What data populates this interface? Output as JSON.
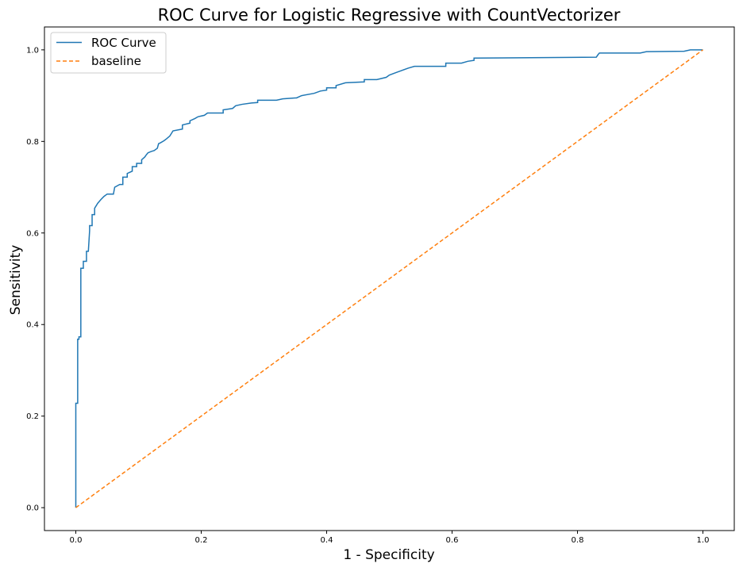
{
  "chart_data": {
    "type": "line",
    "title": "ROC Curve for Logistic Regressive with CountVectorizer",
    "xlabel": "1 - Specificity",
    "ylabel": "Sensitivity",
    "xlim": [
      -0.05,
      1.05
    ],
    "ylim": [
      -0.05,
      1.05
    ],
    "xticks": [
      "0.0",
      "0.2",
      "0.4",
      "0.6",
      "0.8",
      "1.0"
    ],
    "yticks": [
      "0.0",
      "0.2",
      "0.4",
      "0.6",
      "0.8",
      "1.0"
    ],
    "grid": false,
    "legend_position": "top-left",
    "series": [
      {
        "name": "ROC Curve",
        "color": "#1f77b4",
        "style": "solid",
        "x": [
          0.0,
          0.0,
          0.003,
          0.003,
          0.005,
          0.005,
          0.008,
          0.008,
          0.012,
          0.012,
          0.017,
          0.017,
          0.02,
          0.022,
          0.022,
          0.026,
          0.026,
          0.03,
          0.03,
          0.035,
          0.04,
          0.045,
          0.05,
          0.06,
          0.062,
          0.062,
          0.07,
          0.075,
          0.075,
          0.082,
          0.082,
          0.09,
          0.09,
          0.097,
          0.097,
          0.105,
          0.105,
          0.11,
          0.112,
          0.115,
          0.12,
          0.125,
          0.13,
          0.132,
          0.135,
          0.14,
          0.142,
          0.145,
          0.15,
          0.155,
          0.17,
          0.17,
          0.182,
          0.182,
          0.19,
          0.195,
          0.205,
          0.21,
          0.235,
          0.235,
          0.25,
          0.255,
          0.265,
          0.28,
          0.29,
          0.29,
          0.32,
          0.33,
          0.35,
          0.352,
          0.36,
          0.38,
          0.39,
          0.4,
          0.4,
          0.415,
          0.415,
          0.43,
          0.46,
          0.46,
          0.48,
          0.495,
          0.5,
          0.51,
          0.52,
          0.53,
          0.54,
          0.59,
          0.59,
          0.615,
          0.625,
          0.635,
          0.635,
          0.83,
          0.833,
          0.835,
          0.9,
          0.91,
          0.97,
          0.98,
          1.0
        ],
        "y": [
          0.0,
          0.228,
          0.228,
          0.368,
          0.368,
          0.373,
          0.373,
          0.523,
          0.523,
          0.538,
          0.538,
          0.56,
          0.56,
          0.605,
          0.616,
          0.616,
          0.64,
          0.64,
          0.654,
          0.665,
          0.673,
          0.68,
          0.685,
          0.685,
          0.7,
          0.7,
          0.706,
          0.706,
          0.722,
          0.722,
          0.73,
          0.735,
          0.745,
          0.745,
          0.752,
          0.752,
          0.76,
          0.766,
          0.77,
          0.775,
          0.778,
          0.78,
          0.785,
          0.795,
          0.797,
          0.801,
          0.803,
          0.806,
          0.812,
          0.823,
          0.827,
          0.836,
          0.84,
          0.845,
          0.85,
          0.854,
          0.857,
          0.862,
          0.862,
          0.869,
          0.872,
          0.878,
          0.881,
          0.884,
          0.885,
          0.89,
          0.89,
          0.893,
          0.895,
          0.895,
          0.9,
          0.905,
          0.91,
          0.912,
          0.917,
          0.917,
          0.922,
          0.928,
          0.93,
          0.935,
          0.935,
          0.94,
          0.945,
          0.95,
          0.955,
          0.96,
          0.964,
          0.964,
          0.971,
          0.971,
          0.975,
          0.977,
          0.982,
          0.984,
          0.99,
          0.993,
          0.993,
          0.996,
          0.997,
          1.0,
          1.0
        ]
      },
      {
        "name": "baseline",
        "color": "#ff7f0e",
        "style": "dashed",
        "x": [
          0.0,
          1.0
        ],
        "y": [
          0.0,
          1.0
        ]
      }
    ]
  }
}
